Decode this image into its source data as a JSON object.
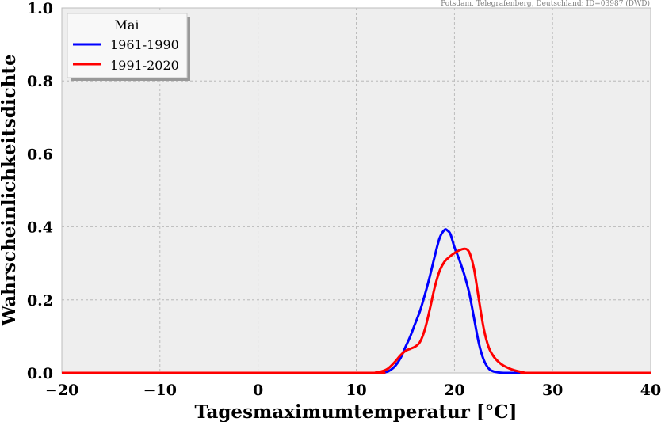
{
  "chart_data": {
    "type": "line",
    "title": "",
    "source_note": "Potsdam, Telegrafenberg, Deutschland: ID=03987 (DWD)",
    "xlabel": "Tagesmaximumtemperatur [°C]",
    "ylabel": "Wahrscheinlichkeitsdichte",
    "xlim": [
      -20,
      40
    ],
    "ylim": [
      0,
      1.0
    ],
    "xticks": [
      -20,
      -10,
      0,
      10,
      20,
      30,
      40
    ],
    "xtick_labels": [
      "−20",
      "−10",
      "0",
      "10",
      "20",
      "30",
      "40"
    ],
    "yticks": [
      0.0,
      0.2,
      0.4,
      0.6,
      0.8,
      1.0
    ],
    "ytick_labels": [
      "0.0",
      "0.2",
      "0.4",
      "0.6",
      "0.8",
      "1.0"
    ],
    "grid": true,
    "legend": {
      "title": "Mai",
      "placement": "top-left"
    },
    "series": [
      {
        "name": "1961-1990",
        "color": "#0000ff",
        "x": [
          -20,
          10,
          12,
          13,
          13.5,
          14,
          14.5,
          15,
          15.5,
          16,
          16.5,
          17,
          17.5,
          18,
          18.5,
          19,
          19.3,
          19.6,
          20,
          20.5,
          21,
          21.5,
          22,
          22.5,
          23,
          23.5,
          24,
          25,
          26,
          40
        ],
        "y": [
          0,
          0,
          0.0,
          0.002,
          0.008,
          0.02,
          0.04,
          0.07,
          0.1,
          0.135,
          0.17,
          0.215,
          0.265,
          0.32,
          0.37,
          0.392,
          0.39,
          0.38,
          0.345,
          0.31,
          0.27,
          0.22,
          0.15,
          0.08,
          0.035,
          0.012,
          0.004,
          0.0,
          0.0,
          0
        ]
      },
      {
        "name": "1991-2020",
        "color": "#ff0000",
        "x": [
          -20,
          10,
          12,
          13,
          13.5,
          14,
          14.5,
          15,
          15.5,
          16,
          16.5,
          17,
          17.5,
          18,
          18.5,
          19,
          19.5,
          20,
          20.5,
          21,
          21.3,
          21.6,
          22,
          22.5,
          23,
          23.5,
          24,
          24.5,
          25,
          26,
          27,
          28,
          40
        ],
        "y": [
          0,
          0,
          0.001,
          0.008,
          0.018,
          0.032,
          0.048,
          0.06,
          0.066,
          0.072,
          0.085,
          0.12,
          0.175,
          0.235,
          0.28,
          0.305,
          0.318,
          0.328,
          0.336,
          0.34,
          0.338,
          0.325,
          0.285,
          0.2,
          0.12,
          0.07,
          0.045,
          0.03,
          0.02,
          0.008,
          0.002,
          0.0,
          0
        ]
      }
    ]
  }
}
